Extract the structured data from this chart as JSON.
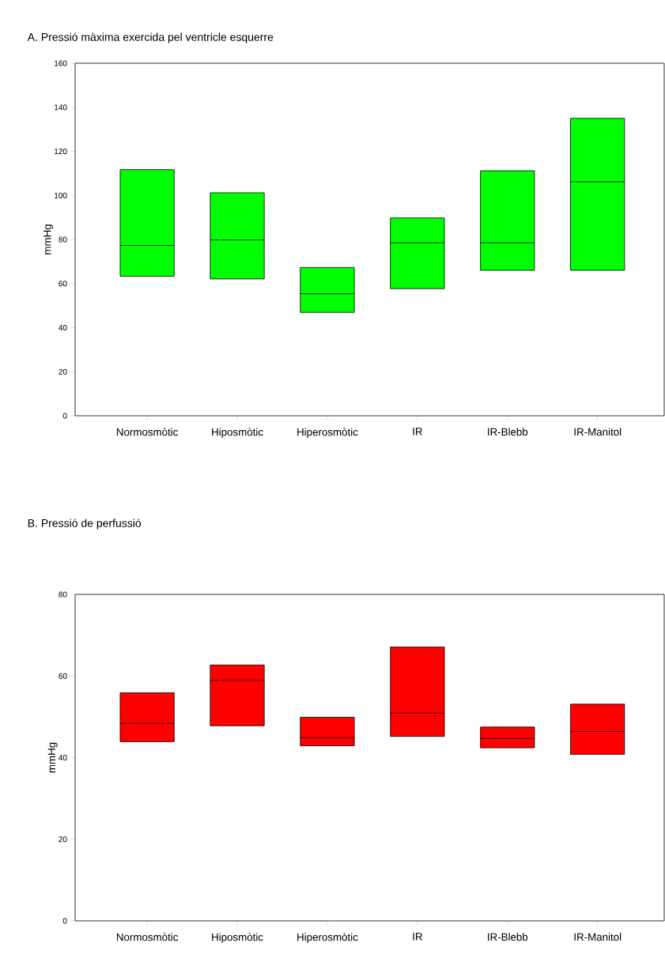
{
  "chart_data": [
    {
      "type": "box",
      "title": "A. Pressió màxima exercida pel ventricle esquerre",
      "ylabel": "mmHg",
      "categories": [
        "Normosmòtic",
        "Hiposmòtic",
        "Hiperosmòtic",
        "IR",
        "IR-Blebb",
        "IR-Manitol"
      ],
      "ylim": [
        0,
        160
      ],
      "yticks": [
        0,
        20,
        40,
        60,
        80,
        100,
        120,
        140,
        160
      ],
      "series": [
        {
          "color": "#00ff00",
          "boxes": [
            {
              "low": 63.3,
              "q1": 63.3,
              "median": 77.3,
              "q3": 111.7,
              "high": 111.7
            },
            {
              "low": 62.1,
              "q1": 62.1,
              "median": 79.8,
              "q3": 101.2,
              "high": 101.2
            },
            {
              "low": 46.9,
              "q1": 46.9,
              "median": 55.4,
              "q3": 67.3,
              "high": 67.3
            },
            {
              "low": 57.7,
              "q1": 57.7,
              "median": 78.5,
              "q3": 89.8,
              "high": 89.8
            },
            {
              "low": 66,
              "q1": 66,
              "median": 78.5,
              "q3": 111.2,
              "high": 111.2
            },
            {
              "low": 66,
              "q1": 66,
              "median": 106.2,
              "q3": 135,
              "high": 135
            }
          ]
        }
      ]
    },
    {
      "type": "box",
      "title": "B. Pressió de perfussió",
      "ylabel": "mmHg",
      "categories": [
        "Normosmòtic",
        "Hiposmòtic",
        "Hiperosmòtic",
        "IR",
        "IR-Blebb",
        "IR-Manitol"
      ],
      "ylim": [
        0,
        80
      ],
      "yticks": [
        0,
        20,
        40,
        60,
        80
      ],
      "series": [
        {
          "color": "#ff0000",
          "boxes": [
            {
              "low": 43.9,
              "q1": 43.9,
              "median": 48.4,
              "q3": 55.9,
              "high": 55.9
            },
            {
              "low": 47.8,
              "q1": 47.8,
              "median": 58.9,
              "q3": 62.7,
              "high": 62.7
            },
            {
              "low": 42.9,
              "q1": 42.9,
              "median": 44.9,
              "q3": 49.9,
              "high": 49.9
            },
            {
              "low": 45.2,
              "q1": 45.2,
              "median": 50.9,
              "q3": 67.1,
              "high": 67.1
            },
            {
              "low": 42.4,
              "q1": 42.4,
              "median": 44.7,
              "q3": 47.5,
              "high": 47.5
            },
            {
              "low": 40.8,
              "q1": 40.8,
              "median": 46.4,
              "q3": 53.1,
              "high": 53.1
            }
          ]
        }
      ]
    }
  ]
}
